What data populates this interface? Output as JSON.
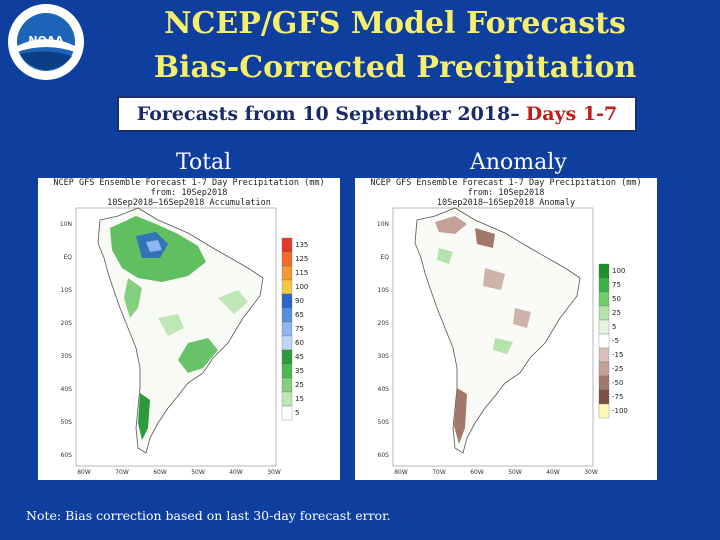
{
  "header": {
    "title_line1": "NCEP/GFS Model Forecasts",
    "title_line2": "Bias-Corrected Precipitation",
    "banner_main": "Forecasts from 10 September 2018–",
    "banner_highlight": "Days 1-7"
  },
  "logo": {
    "text": "NOAA",
    "icon": "noaa-logo"
  },
  "panels": {
    "total": {
      "label": "Total",
      "hdr_line1": "NCEP GFS Ensemble Forecast 1-7 Day Precipitation (mm)",
      "hdr_line2": "from: 10Sep2018",
      "hdr_line3": "10Sep2018–16Sep2018 Accumulation",
      "colorbar_labels": [
        "135",
        "125",
        "115",
        "100",
        "90",
        "65",
        "75",
        "60",
        "45",
        "35",
        "25",
        "15",
        "5"
      ],
      "colorbar_colors": [
        "#e33a2a",
        "#f26b2b",
        "#f59a32",
        "#f5c842",
        "#2a65c9",
        "#5a8ede",
        "#8fb6ee",
        "#bcd6f5",
        "#2a9a3a",
        "#4fb84f",
        "#85d07c",
        "#bfe7b5",
        "#ffffff"
      ]
    },
    "anomaly": {
      "label": "Anomaly",
      "hdr_line1": "NCEP GFS Ensemble Forecast 1-7 Day Precipitation (mm)",
      "hdr_line2": "from: 10Sep2018",
      "hdr_line3": "10Sep2018–16Sep2018 Anomaly",
      "colorbar_labels": [
        "100",
        "75",
        "50",
        "25",
        "5",
        "-5",
        "-15",
        "-25",
        "-50",
        "-75",
        "-100"
      ],
      "colorbar_colors": [
        "#1e8f2e",
        "#3bb24a",
        "#75cc6f",
        "#b4e3aa",
        "#e4f4df",
        "#ffffff",
        "#d9c2bb",
        "#c3a196",
        "#a27869",
        "#7a5143",
        "#fdf6b5"
      ]
    },
    "lat_labels": [
      "10N",
      "EQ",
      "10S",
      "20S",
      "30S",
      "40S",
      "50S",
      "60S"
    ],
    "lon_labels": [
      "80W",
      "70W",
      "60W",
      "50W",
      "40W",
      "30W"
    ]
  },
  "footer": {
    "note": "Note: Bias correction based on last 30-day forecast error."
  }
}
